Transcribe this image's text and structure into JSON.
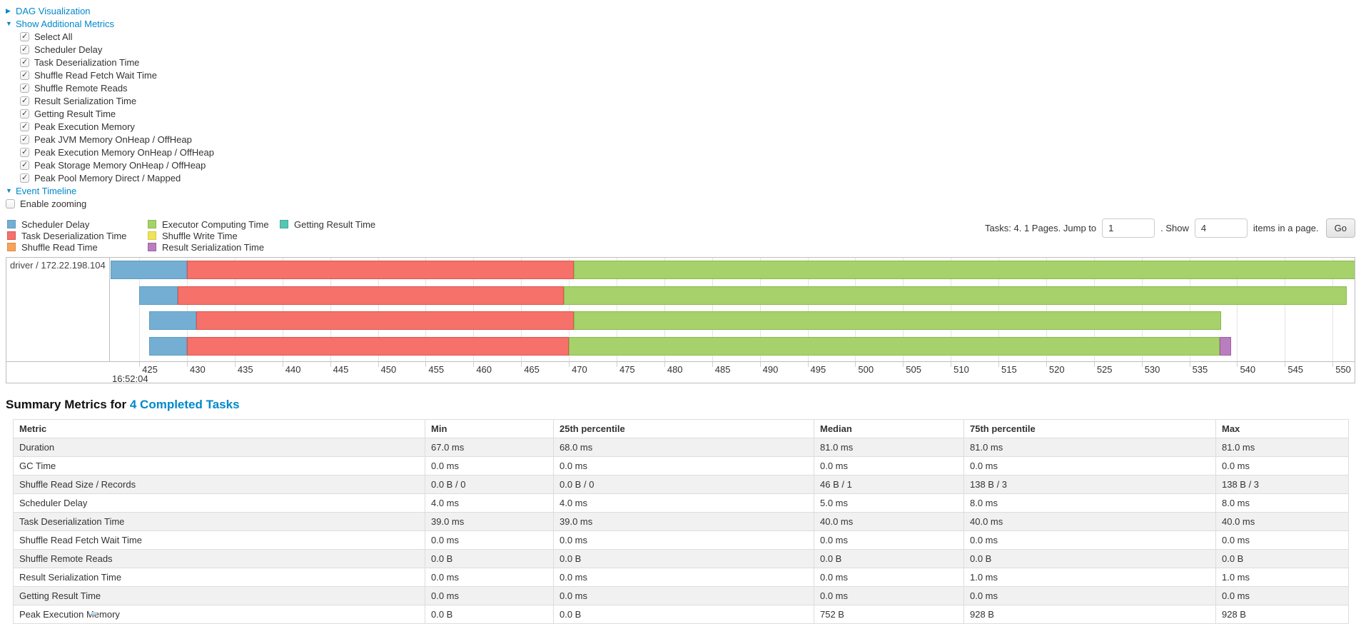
{
  "sections": {
    "dag": {
      "label": "DAG Visualization",
      "state": "collapsed"
    },
    "metrics": {
      "label": "Show Additional Metrics",
      "state": "expanded"
    },
    "timeline": {
      "label": "Event Timeline",
      "state": "expanded"
    }
  },
  "metric_checkboxes": [
    {
      "label": "Select All",
      "checked": true
    },
    {
      "label": "Scheduler Delay",
      "checked": true
    },
    {
      "label": "Task Deserialization Time",
      "checked": true
    },
    {
      "label": "Shuffle Read Fetch Wait Time",
      "checked": true
    },
    {
      "label": "Shuffle Remote Reads",
      "checked": true
    },
    {
      "label": "Result Serialization Time",
      "checked": true
    },
    {
      "label": "Getting Result Time",
      "checked": true
    },
    {
      "label": "Peak Execution Memory",
      "checked": true
    },
    {
      "label": "Peak JVM Memory OnHeap / OffHeap",
      "checked": true
    },
    {
      "label": "Peak Execution Memory OnHeap / OffHeap",
      "checked": true
    },
    {
      "label": "Peak Storage Memory OnHeap / OffHeap",
      "checked": true
    },
    {
      "label": "Peak Pool Memory Direct / Mapped",
      "checked": true
    }
  ],
  "enable_zooming": {
    "label": "Enable zooming",
    "checked": false
  },
  "legend": {
    "items": [
      {
        "key": "scheduler_delay",
        "label": "Scheduler Delay",
        "color": "#74AFD3",
        "border": "#5E9CC0"
      },
      {
        "key": "task_deserialization",
        "label": "Task Deserialization Time",
        "color": "#F5716A",
        "border": "#DE564F"
      },
      {
        "key": "shuffle_read",
        "label": "Shuffle Read Time",
        "color": "#F7A35C",
        "border": "#E08A3C"
      },
      {
        "key": "executor_computing",
        "label": "Executor Computing Time",
        "color": "#A6D16B",
        "border": "#8ABB4A"
      },
      {
        "key": "shuffle_write",
        "label": "Shuffle Write Time",
        "color": "#EFE35D",
        "border": "#D9C93F"
      },
      {
        "key": "result_serialization",
        "label": "Result Serialization Time",
        "color": "#B97EBE",
        "border": "#9F5FA5"
      },
      {
        "key": "getting_result",
        "label": "Getting Result Time",
        "color": "#56C6B2",
        "border": "#3DAD99"
      }
    ]
  },
  "pagination": {
    "text_before": "Tasks: 4. 1 Pages. Jump to",
    "jump_value": "1",
    "between": ". Show",
    "show_value": "4",
    "after": "items in a page.",
    "go_label": "Go"
  },
  "chart_data": {
    "type": "timeline",
    "group_label": "driver / 172.22.198.104",
    "axis_start_label": "16:52:04",
    "x_unit": "ms within 16:52:04",
    "x_domain": [
      422,
      552.3
    ],
    "ticks": [
      425,
      430,
      435,
      440,
      445,
      450,
      455,
      460,
      465,
      470,
      475,
      480,
      485,
      490,
      495,
      500,
      505,
      510,
      515,
      520,
      525,
      530,
      535,
      540,
      545,
      550
    ],
    "tasks": [
      {
        "segments": [
          {
            "metric": "scheduler_delay",
            "from": 422,
            "to": 430
          },
          {
            "metric": "task_deserialization",
            "from": 430,
            "to": 470.5
          },
          {
            "metric": "executor_computing",
            "from": 470.5,
            "to": 552.5
          }
        ]
      },
      {
        "segments": [
          {
            "metric": "scheduler_delay",
            "from": 425,
            "to": 429
          },
          {
            "metric": "task_deserialization",
            "from": 429,
            "to": 469.5
          },
          {
            "metric": "executor_computing",
            "from": 469.5,
            "to": 551.5
          }
        ]
      },
      {
        "segments": [
          {
            "metric": "scheduler_delay",
            "from": 426,
            "to": 431
          },
          {
            "metric": "task_deserialization",
            "from": 431,
            "to": 470.5
          },
          {
            "metric": "executor_computing",
            "from": 470.5,
            "to": 538.3
          }
        ]
      },
      {
        "segments": [
          {
            "metric": "scheduler_delay",
            "from": 426,
            "to": 430
          },
          {
            "metric": "task_deserialization",
            "from": 430,
            "to": 470
          },
          {
            "metric": "executor_computing",
            "from": 470,
            "to": 538.2
          },
          {
            "metric": "result_serialization",
            "from": 538.2,
            "to": 539.4
          }
        ]
      }
    ]
  },
  "summary": {
    "title_prefix": "Summary Metrics for",
    "title_link": "4 Completed Tasks",
    "table": {
      "columns": [
        "Metric",
        "Min",
        "25th percentile",
        "Median",
        "75th percentile",
        "Max"
      ],
      "rows": [
        [
          "Duration",
          "67.0 ms",
          "68.0 ms",
          "81.0 ms",
          "81.0 ms",
          "81.0 ms"
        ],
        [
          "GC Time",
          "0.0 ms",
          "0.0 ms",
          "0.0 ms",
          "0.0 ms",
          "0.0 ms"
        ],
        [
          "Shuffle Read Size / Records",
          "0.0 B / 0",
          "0.0 B / 0",
          "46 B / 1",
          "138 B / 3",
          "138 B / 3"
        ],
        [
          "Scheduler Delay",
          "4.0 ms",
          "4.0 ms",
          "5.0 ms",
          "8.0 ms",
          "8.0 ms"
        ],
        [
          "Task Deserialization Time",
          "39.0 ms",
          "39.0 ms",
          "40.0 ms",
          "40.0 ms",
          "40.0 ms"
        ],
        [
          "Shuffle Read Fetch Wait Time",
          "0.0 ms",
          "0.0 ms",
          "0.0 ms",
          "0.0 ms",
          "0.0 ms"
        ],
        [
          "Shuffle Remote Reads",
          "0.0 B",
          "0.0 B",
          "0.0 B",
          "0.0 B",
          "0.0 B"
        ],
        [
          "Result Serialization Time",
          "0.0 ms",
          "0.0 ms",
          "0.0 ms",
          "1.0 ms",
          "1.0 ms"
        ],
        [
          "Getting Result Time",
          "0.0 ms",
          "0.0 ms",
          "0.0 ms",
          "0.0 ms",
          "0.0 ms"
        ],
        [
          "Peak Execution Memory",
          "0.0 B",
          "0.0 B",
          "752 B",
          "928 B",
          "928 B"
        ]
      ]
    }
  }
}
